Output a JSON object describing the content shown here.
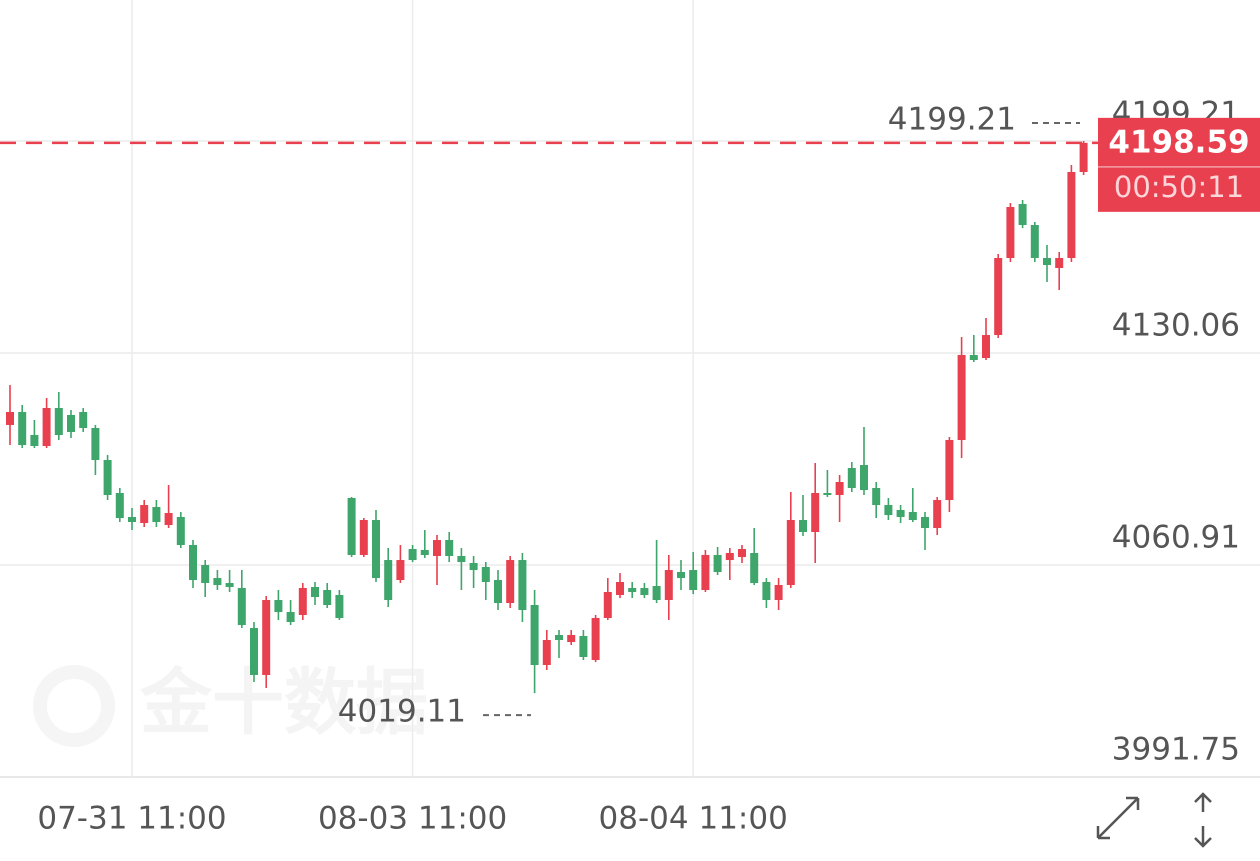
{
  "chart_data": {
    "type": "candlestick",
    "categories": [
      null,
      null,
      null,
      null,
      null,
      null,
      null,
      null,
      null,
      null,
      "07-31 11:00",
      null,
      null,
      null,
      null,
      null,
      null,
      null,
      null,
      null,
      null,
      null,
      null,
      null,
      null,
      null,
      null,
      null,
      null,
      null,
      null,
      null,
      null,
      "08-03 11:00",
      null,
      null,
      null,
      null,
      null,
      null,
      null,
      null,
      null,
      null,
      null,
      null,
      null,
      null,
      null,
      null,
      null,
      null,
      null,
      null,
      null,
      null,
      "08-04 11:00",
      null,
      null,
      null,
      null,
      null,
      null,
      null,
      null,
      null,
      null,
      null,
      null,
      null,
      null,
      null,
      null,
      null,
      null,
      null,
      null,
      null,
      null,
      null,
      null,
      null,
      null,
      null,
      null,
      null,
      null,
      null,
      null
    ],
    "open": [
      4106.56,
      4110.8,
      4103.3,
      4099.71,
      4112.1,
      4109.82,
      4110.8,
      4105.58,
      4095.14,
      4084.38,
      4076.55,
      4074.59,
      4079.81,
      4073.94,
      4076.55,
      4067.42,
      4060.89,
      4056.65,
      4055.02,
      4053.39,
      4040.35,
      4025.02,
      4049.48,
      4045.56,
      4044.59,
      4053.72,
      4052.74,
      4051.11,
      4082.75,
      4064.16,
      4075.57,
      4062.52,
      4056.0,
      4066.11,
      4065.79,
      4063.83,
      4069.05,
      4063.83,
      4061.55,
      4060.24,
      4056.0,
      4048.5,
      4062.52,
      4047.85,
      4028.28,
      4038.06,
      4035.78,
      4037.74,
      4029.91,
      4043.61,
      4051.11,
      4053.39,
      4053.39,
      4054.04,
      4049.48,
      4058.61,
      4059.26,
      4052.74,
      4064.16,
      4062.52,
      4063.5,
      4064.81,
      4055.35,
      4049.48,
      4054.37,
      4075.57,
      4071.66,
      4084.38,
      4083.73,
      4092.53,
      4093.51,
      4086.01,
      4080.46,
      4078.83,
      4078.18,
      4076.55,
      4072.96,
      4082.09,
      4101.67,
      4129.39,
      4128.41,
      4135.91,
      4161.03,
      4178.64,
      4171.79,
      4161.03,
      4157.77,
      4161.03,
      4189.08
    ],
    "high": [
      4119.6,
      4113.08,
      4108.19,
      4115.36,
      4117.32,
      4111.45,
      4112.1,
      4106.56,
      4096.77,
      4086.01,
      4079.49,
      4082.09,
      4082.09,
      4086.99,
      4078.18,
      4069.05,
      4062.52,
      4059.26,
      4059.26,
      4059.26,
      4042.3,
      4050.78,
      4052.74,
      4049.48,
      4055.02,
      4055.35,
      4055.02,
      4052.74,
      4083.07,
      4076.22,
      4078.83,
      4066.44,
      4067.42,
      4067.42,
      4072.31,
      4070.68,
      4071.66,
      4066.44,
      4063.83,
      4061.87,
      4059.26,
      4063.83,
      4064.81,
      4052.74,
      4039.69,
      4039.69,
      4039.69,
      4039.69,
      4044.59,
      4056.65,
      4058.28,
      4055.35,
      4055.02,
      4069.05,
      4064.16,
      4062.52,
      4065.13,
      4065.79,
      4066.77,
      4066.44,
      4067.42,
      4072.96,
      4056.65,
      4056.65,
      4084.7,
      4083.73,
      4094.16,
      4091.88,
      4090.25,
      4094.49,
      4105.91,
      4087.97,
      4082.75,
      4080.46,
      4086.01,
      4078.18,
      4083.07,
      4102.64,
      4135.26,
      4135.91,
      4141.46,
      4162.33,
      4178.97,
      4179.95,
      4172.77,
      4165.27,
      4162.99,
      4191.36,
      4199.21
    ],
    "low": [
      4100.03,
      4099.06,
      4099.06,
      4099.06,
      4101.67,
      4102.32,
      4104.27,
      4090.25,
      4082.09,
      4074.92,
      4072.31,
      4073.29,
      4073.29,
      4072.96,
      4066.44,
      4053.39,
      4050.46,
      4052.74,
      4052.09,
      4040.35,
      4022.73,
      4020.78,
      4042.95,
      4041.32,
      4042.95,
      4047.85,
      4046.87,
      4042.95,
      4063.5,
      4063.5,
      4055.35,
      4047.19,
      4055.02,
      4061.87,
      4063.18,
      4054.37,
      4061.87,
      4052.74,
      4053.39,
      4049.48,
      4046.22,
      4046.87,
      4042.3,
      4019.11,
      4026.65,
      4030.56,
      4034.8,
      4029.91,
      4029.25,
      4042.95,
      4050.13,
      4050.13,
      4050.13,
      4048.5,
      4042.95,
      4052.74,
      4051.43,
      4052.09,
      4057.63,
      4056.0,
      4061.55,
      4054.37,
      4046.87,
      4046.22,
      4053.39,
      4070.35,
      4061.55,
      4083.07,
      4074.92,
      4084.7,
      4083.73,
      4076.22,
      4075.57,
      4074.59,
      4074.92,
      4065.79,
      4070.68,
      4078.18,
      4095.79,
      4127.11,
      4127.76,
      4134.93,
      4159.72,
      4170.81,
      4159.72,
      4153.2,
      4150.59,
      4159.72,
      4188.1
    ],
    "close": [
      4110.8,
      4100.03,
      4099.71,
      4112.1,
      4103.3,
      4104.27,
      4105.58,
      4095.14,
      4083.73,
      4076.22,
      4074.92,
      4080.46,
      4074.92,
      4077.85,
      4067.42,
      4056.0,
      4055.02,
      4054.37,
      4053.72,
      4041.32,
      4025.02,
      4049.48,
      4045.56,
      4042.3,
      4053.39,
      4050.46,
      4047.85,
      4043.61,
      4064.16,
      4075.57,
      4056.65,
      4049.48,
      4062.52,
      4062.52,
      4064.16,
      4069.05,
      4063.83,
      4061.87,
      4059.26,
      4055.35,
      4048.5,
      4062.52,
      4046.22,
      4028.28,
      4036.43,
      4036.43,
      4038.06,
      4030.89,
      4043.61,
      4052.09,
      4055.35,
      4052.09,
      4051.11,
      4049.48,
      4059.26,
      4056.65,
      4052.74,
      4064.16,
      4058.61,
      4064.81,
      4066.11,
      4055.02,
      4049.48,
      4054.37,
      4075.57,
      4071.66,
      4084.38,
      4083.73,
      4087.97,
      4086.01,
      4085.36,
      4080.46,
      4077.2,
      4076.55,
      4075.57,
      4072.96,
      4082.09,
      4101.67,
      4129.39,
      4127.76,
      4135.91,
      4161.03,
      4177.66,
      4171.79,
      4161.03,
      4158.74,
      4161.03,
      4189.08,
      4198.59
    ],
    "up_color": "#e8404f",
    "down_color": "#3ea56b",
    "ylim": [
      3991.75,
      4245.18
    ],
    "yticks": [
      3991.75,
      4060.91,
      4130.06,
      4199.21
    ],
    "grid": true,
    "countdown": "00:50:11",
    "watermark": "金十数据"
  }
}
